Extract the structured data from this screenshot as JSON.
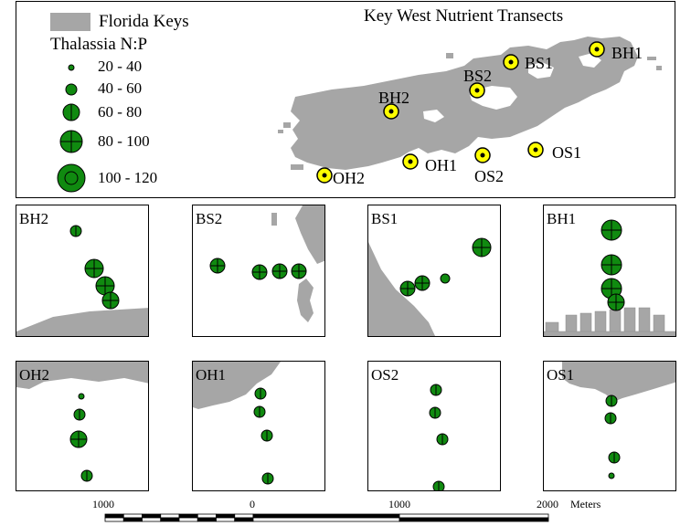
{
  "map_title": "Key West Nutrient Transects",
  "legend": {
    "land_label": "Florida Keys",
    "title": "Thalassia N:P",
    "classes": [
      "20 - 40",
      "40 - 60",
      "60 - 80",
      "80 - 100",
      "100 - 120"
    ]
  },
  "stations": [
    "BH1",
    "BS1",
    "BS2",
    "BH2",
    "OS1",
    "OS2",
    "OH1",
    "OH2"
  ],
  "panels": {
    "bh2": "BH2",
    "bs2": "BS2",
    "bs1": "BS1",
    "bh1": "BH1",
    "oh2": "OH2",
    "oh1": "OH1",
    "os2": "OS2",
    "os1": "OS1"
  },
  "scale_bar": {
    "ticks": [
      "1000",
      "0",
      "1000",
      "2000"
    ],
    "unit": "Meters"
  },
  "colors": {
    "land": "#a6a6a6",
    "site_fill": "#108a10",
    "station_marker": "#ffff00"
  }
}
